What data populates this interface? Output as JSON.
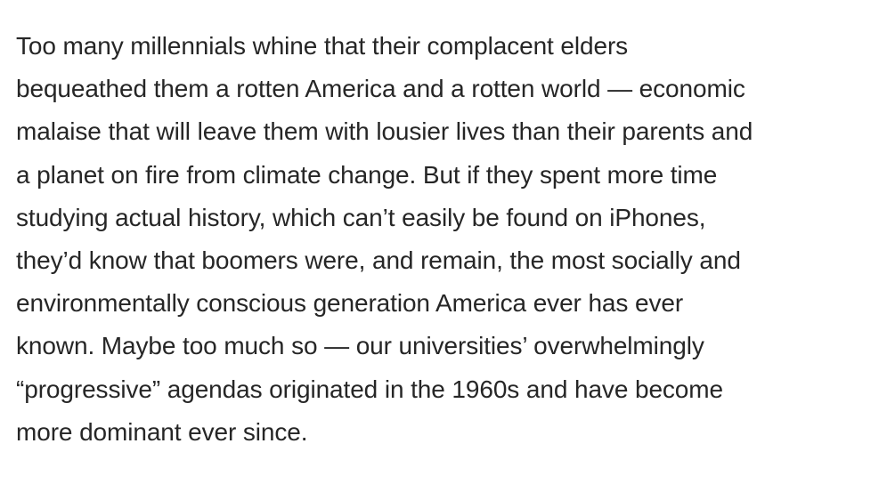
{
  "article": {
    "lines": [
      "Too many millennials whine that their complacent elders",
      "bequeathed them a rotten America and a rotten world — economic",
      "malaise that will leave them with lousier lives than their parents and",
      "a planet on fire from climate change. But if they spent more time",
      "studying actual history, which can’t easily be found on iPhones,",
      "they’d know that boomers were, and remain, the most socially and",
      "environmentally conscious generation America ever has ever",
      "known. Maybe too much so — our universities’ overwhelmingly",
      "“progressive” agendas originated in the 1960s and have become",
      "more dominant ever since."
    ]
  }
}
